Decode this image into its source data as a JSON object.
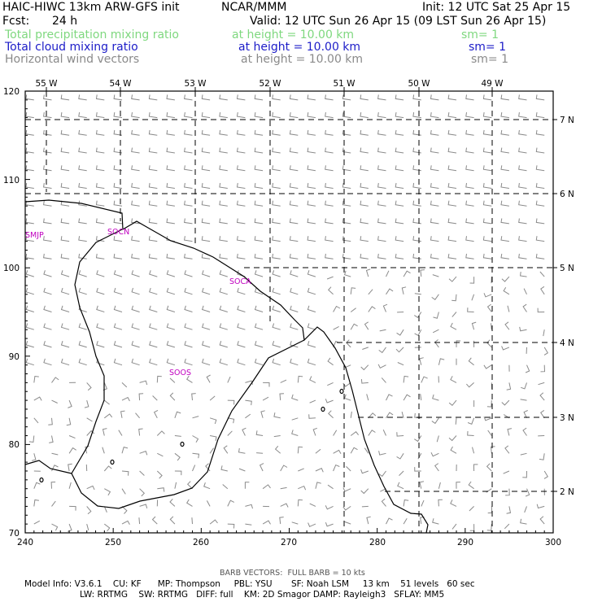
{
  "header": {
    "model_title": "HAIC-HIWC 13km ARW-GFS init",
    "org": "NCAR/MMM",
    "init": "Init: 12 UTC Sat 25 Apr 15",
    "fcst_label": "Fcst:",
    "fcst_value": "24 h",
    "valid": "Valid: 12 UTC Sun 26 Apr 15 (09 LST Sun 26 Apr 15)"
  },
  "fields": [
    {
      "name": "Total precipitation mixing ratio",
      "level": "at height = 10.00 km",
      "smooth": "sm= 1",
      "color": "#7fd87f"
    },
    {
      "name": "Total cloud mixing ratio",
      "level": "at height = 10.00 km",
      "smooth": "sm= 1",
      "color": "#1c1cc8"
    },
    {
      "name": "Horizontal wind vectors",
      "level": "at height = 10.00 km",
      "smooth": "sm= 1",
      "color": "#8a8a8a"
    }
  ],
  "map": {
    "lon_labels": [
      "55 W",
      "54 W",
      "53 W",
      "52 W",
      "51 W",
      "50 W",
      "49 W"
    ],
    "lat_labels": [
      "7 N",
      "6 N",
      "5 N",
      "4 N",
      "3 N",
      "2 N"
    ],
    "x_ticks": [
      "240",
      "250",
      "260",
      "270",
      "280",
      "290",
      "300"
    ],
    "y_ticks": [
      "120",
      "110",
      "100",
      "90",
      "80",
      "70"
    ],
    "stations": [
      "SMJP",
      "SOCN",
      "SOCA",
      "SOOS"
    ],
    "station_color": "#c000c0",
    "barb_color": "#8a8a8a"
  },
  "footer": {
    "barb_note": "BARB VECTORS:  FULL BARB = 10 kts",
    "line1": "Model Info: V3.6.1    CU: KF      MP: Thompson     PBL: YSU       SF: Noah LSM     13 km    51 levels   60 sec",
    "line2": "LW: RRTMG    SW: RRTMG   DIFF: full    KM: 2D Smagor DAMP: Rayleigh3   SFLAY: MM5"
  }
}
